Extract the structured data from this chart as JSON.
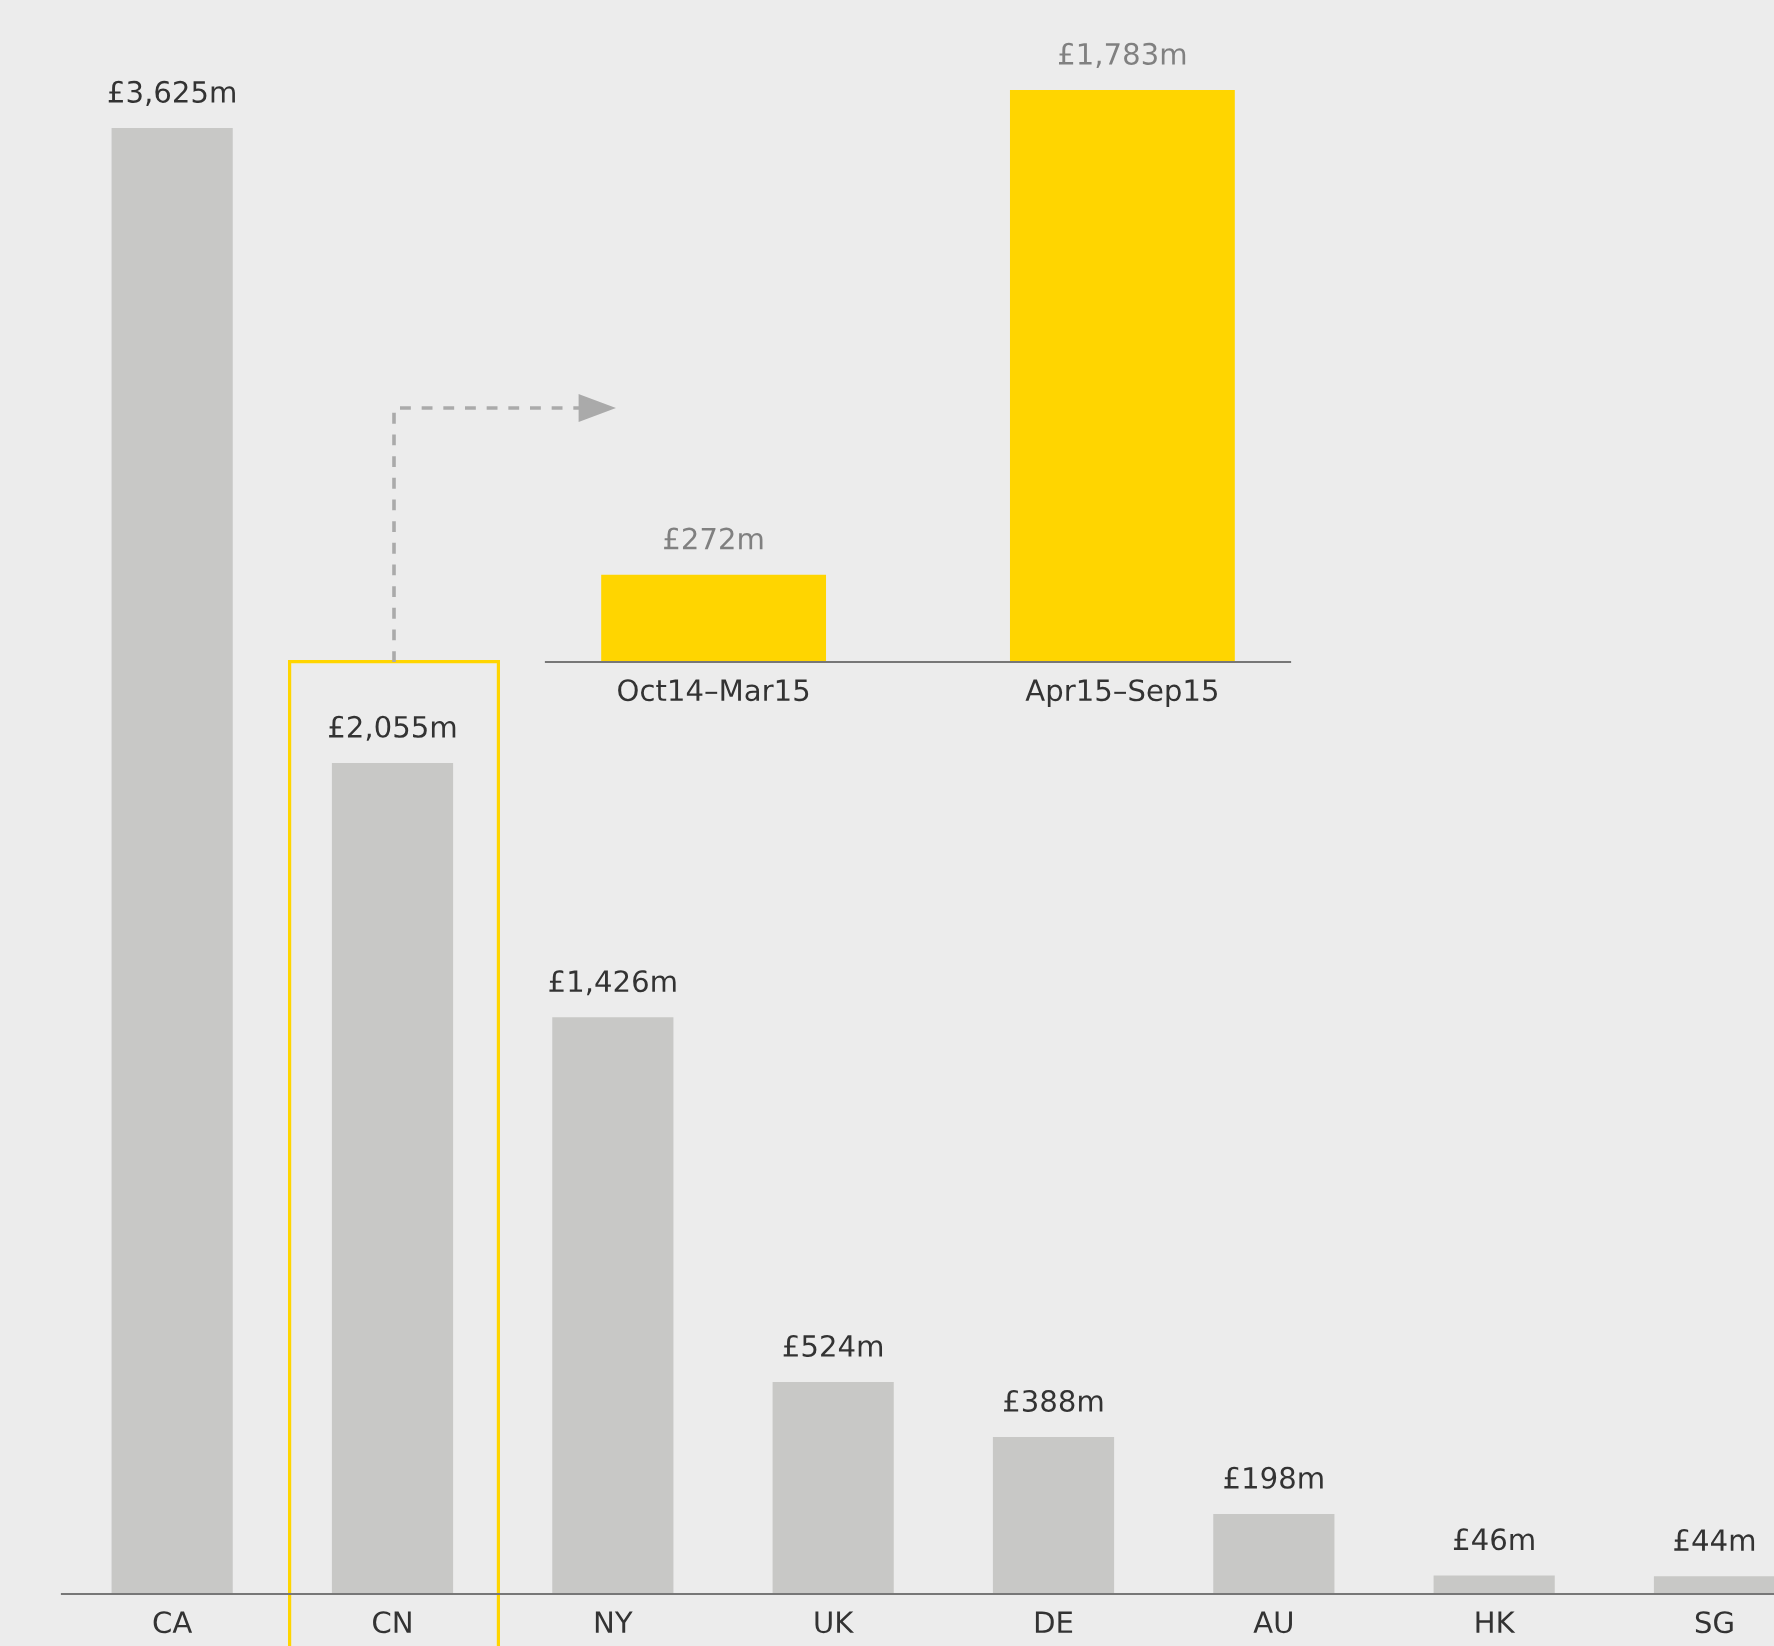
{
  "chart_data": [
    {
      "type": "bar",
      "categories": [
        "CA",
        "CN",
        "NY",
        "UK",
        "DE",
        "AU",
        "HK",
        "SG"
      ],
      "values": [
        3625,
        2055,
        1426,
        524,
        388,
        198,
        46,
        44
      ],
      "color": "#c8c8c6",
      "value_labels": [
        "£3,625m",
        "£2,055m",
        "£1,426m",
        "£524m",
        "£388m",
        "£198m",
        "£46m",
        "£44m"
      ]
    },
    {
      "type": "bar",
      "categories": [
        "Oct14–Mar15",
        "Apr15–Sep15"
      ],
      "values": [
        272,
        1783
      ],
      "color": "#ffd500",
      "value_labels": [
        "£272m",
        "£1,783m"
      ]
    }
  ]
}
